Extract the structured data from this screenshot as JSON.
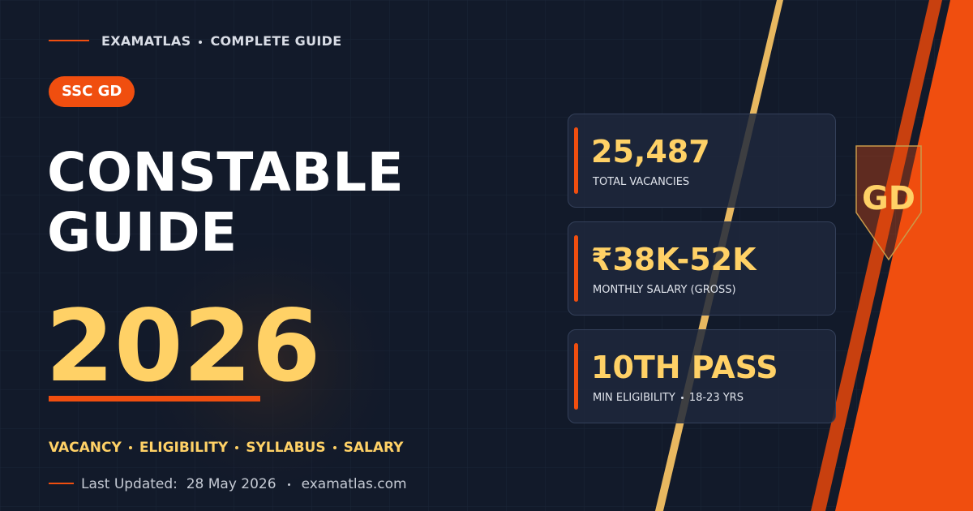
{
  "brand": {
    "name": "EXAMATLAS",
    "tagline": "COMPLETE GUIDE"
  },
  "badge": "SSC GD",
  "title": {
    "lines": [
      "CONSTABLE",
      "GUIDE"
    ],
    "year": "2026"
  },
  "topics": [
    "VACANCY",
    "ELIGIBILITY",
    "SYLLABUS",
    "SALARY"
  ],
  "footer": {
    "updated_label": "Last Updated:",
    "updated_date": "28 May 2026",
    "site": "examatlas.com"
  },
  "stats": [
    {
      "value": "25,487",
      "label": "TOTAL VACANCIES"
    },
    {
      "value": "₹38K-52K",
      "label": "MONTHLY SALARY (GROSS)"
    },
    {
      "value": "10TH PASS",
      "label": "MIN ELIGIBILITY",
      "extra": "18-23 YRS"
    }
  ],
  "emblem": "GD"
}
